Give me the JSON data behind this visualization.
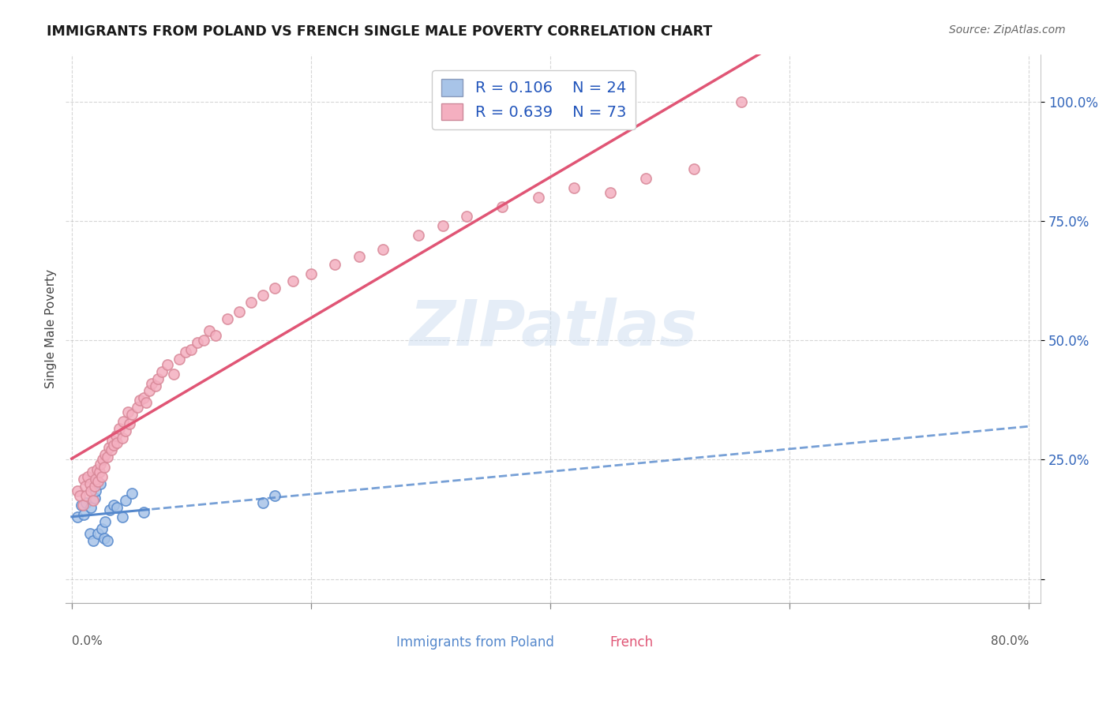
{
  "title": "IMMIGRANTS FROM POLAND VS FRENCH SINGLE MALE POVERTY CORRELATION CHART",
  "source": "Source: ZipAtlas.com",
  "ylabel": "Single Male Poverty",
  "watermark": "ZIPatlas",
  "legend_r1": "0.106",
  "legend_n1": "24",
  "legend_r2": "0.639",
  "legend_n2": "73",
  "color_poland": "#a8c4e8",
  "color_french": "#f4afc0",
  "color_poland_line": "#5588cc",
  "color_french_line": "#e05575",
  "poland_x": [
    0.005,
    0.008,
    0.01,
    0.012,
    0.015,
    0.016,
    0.018,
    0.019,
    0.02,
    0.022,
    0.024,
    0.025,
    0.027,
    0.028,
    0.03,
    0.032,
    0.035,
    0.038,
    0.042,
    0.045,
    0.05,
    0.06,
    0.16,
    0.17
  ],
  "poland_y": [
    0.13,
    0.155,
    0.135,
    0.16,
    0.095,
    0.15,
    0.08,
    0.17,
    0.185,
    0.095,
    0.2,
    0.105,
    0.085,
    0.12,
    0.08,
    0.145,
    0.155,
    0.15,
    0.13,
    0.165,
    0.18,
    0.14,
    0.16,
    0.175
  ],
  "french_x": [
    0.005,
    0.007,
    0.009,
    0.01,
    0.011,
    0.012,
    0.013,
    0.015,
    0.016,
    0.017,
    0.018,
    0.019,
    0.02,
    0.021,
    0.022,
    0.023,
    0.024,
    0.025,
    0.026,
    0.027,
    0.028,
    0.03,
    0.031,
    0.033,
    0.034,
    0.035,
    0.037,
    0.038,
    0.04,
    0.042,
    0.043,
    0.045,
    0.047,
    0.048,
    0.05,
    0.055,
    0.057,
    0.06,
    0.062,
    0.065,
    0.067,
    0.07,
    0.072,
    0.075,
    0.08,
    0.085,
    0.09,
    0.095,
    0.1,
    0.105,
    0.11,
    0.115,
    0.12,
    0.13,
    0.14,
    0.15,
    0.16,
    0.17,
    0.185,
    0.2,
    0.22,
    0.24,
    0.26,
    0.29,
    0.31,
    0.33,
    0.36,
    0.39,
    0.42,
    0.45,
    0.48,
    0.52,
    0.56
  ],
  "french_y": [
    0.185,
    0.175,
    0.155,
    0.21,
    0.195,
    0.175,
    0.215,
    0.2,
    0.185,
    0.225,
    0.165,
    0.195,
    0.21,
    0.23,
    0.205,
    0.225,
    0.24,
    0.215,
    0.25,
    0.235,
    0.26,
    0.255,
    0.275,
    0.27,
    0.29,
    0.28,
    0.3,
    0.285,
    0.315,
    0.295,
    0.33,
    0.31,
    0.35,
    0.325,
    0.345,
    0.36,
    0.375,
    0.38,
    0.37,
    0.395,
    0.41,
    0.405,
    0.42,
    0.435,
    0.45,
    0.43,
    0.46,
    0.475,
    0.48,
    0.495,
    0.5,
    0.52,
    0.51,
    0.545,
    0.56,
    0.58,
    0.595,
    0.61,
    0.625,
    0.64,
    0.66,
    0.675,
    0.69,
    0.72,
    0.74,
    0.76,
    0.78,
    0.8,
    0.82,
    0.81,
    0.84,
    0.86,
    1.0
  ],
  "xlim_min": 0.0,
  "xlim_max": 0.8,
  "ylim_min": -0.05,
  "ylim_max": 1.1,
  "xtick_positions": [
    0.0,
    0.2,
    0.4,
    0.6,
    0.8
  ],
  "ytick_positions": [
    0.0,
    0.25,
    0.5,
    0.75,
    1.0
  ],
  "ytick_labels": [
    "",
    "25.0%",
    "50.0%",
    "75.0%",
    "100.0%"
  ]
}
